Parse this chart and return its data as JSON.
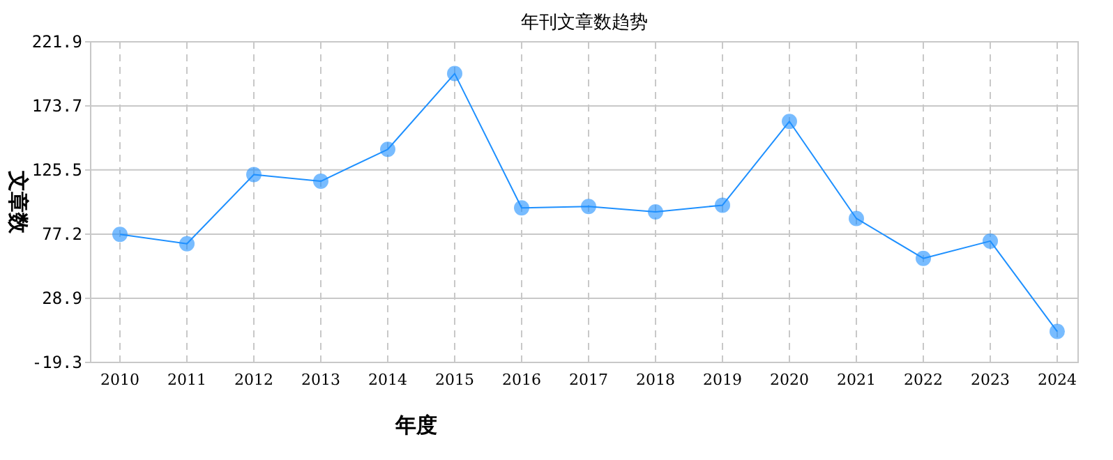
{
  "chart_data": {
    "type": "line",
    "title": "年刊文章数趋势",
    "xlabel": "年度",
    "ylabel": "文章数",
    "categories": [
      "2010",
      "2011",
      "2012",
      "2013",
      "2014",
      "2015",
      "2016",
      "2017",
      "2018",
      "2019",
      "2020",
      "2021",
      "2022",
      "2023",
      "2024"
    ],
    "series": [
      {
        "color": "#1e90ff",
        "values": [
          77,
          70,
          122,
          117,
          141,
          198,
          97,
          98,
          94,
          99,
          162,
          89,
          59,
          72,
          4
        ]
      }
    ],
    "ylim": [
      -19.3,
      221.9
    ],
    "yticks": [
      -19.3,
      28.9,
      77.2,
      125.5,
      173.7,
      221.9
    ],
    "grid": true,
    "marker": "circle",
    "line_style": "solid"
  }
}
